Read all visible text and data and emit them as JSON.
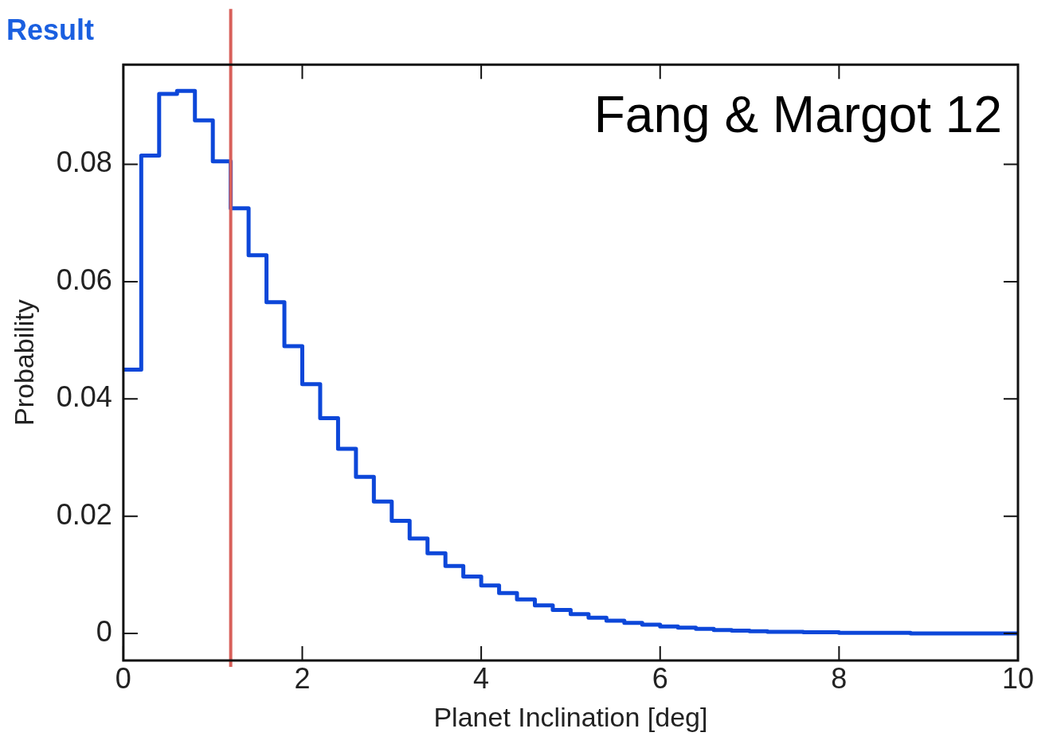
{
  "chart_data": {
    "type": "histogram",
    "title": "Result",
    "xlabel": "Planet Inclination [deg]",
    "ylabel": "Probability",
    "annotations": [
      "Fang & Margot 12"
    ],
    "bins": [
      0,
      0.2,
      0.4,
      0.6,
      0.8,
      1.0,
      1.2,
      1.4,
      1.6,
      1.8,
      2.0,
      2.2,
      2.4,
      2.6,
      2.8,
      3.0,
      3.2,
      3.4,
      3.6,
      3.8,
      4.0,
      4.2,
      4.4,
      4.6,
      4.8,
      5.0,
      5.2,
      5.4,
      5.6,
      5.8,
      6.0,
      6.2,
      6.4,
      6.6,
      6.8,
      7.0,
      7.2,
      7.4,
      7.6,
      7.8,
      8.0,
      8.2,
      8.4,
      8.6,
      8.8,
      9.0,
      9.2,
      9.4,
      9.6,
      9.8,
      10.0
    ],
    "values": [
      0.045,
      0.0815,
      0.092,
      0.0925,
      0.0875,
      0.0805,
      0.0725,
      0.0645,
      0.0565,
      0.049,
      0.0425,
      0.0367,
      0.0315,
      0.0267,
      0.0225,
      0.0192,
      0.0162,
      0.0137,
      0.0115,
      0.0097,
      0.0082,
      0.0069,
      0.0058,
      0.0048,
      0.004,
      0.0033,
      0.0027,
      0.0022,
      0.0018,
      0.0015,
      0.0012,
      0.001,
      0.0008,
      0.0006,
      0.0005,
      0.0004,
      0.0003,
      0.0003,
      0.0002,
      0.0002,
      0.0001,
      0.0001,
      0.0001,
      0.0001,
      0,
      0,
      0,
      0,
      0,
      0
    ],
    "color": "#0d47d9",
    "xlim": [
      0,
      10
    ],
    "xticks": [
      0,
      2,
      4,
      6,
      8,
      10
    ],
    "ylim": [
      -0.0046,
      0.097
    ],
    "yticks": [
      0,
      0.02,
      0.04,
      0.06,
      0.08
    ],
    "grid": false,
    "legend": false,
    "ref_lines": [
      {
        "axis": "x",
        "value": 1.2,
        "color": "#d8605a"
      }
    ]
  }
}
